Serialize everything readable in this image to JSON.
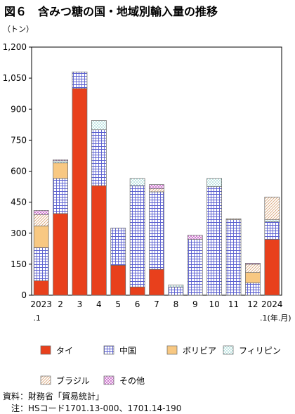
{
  "chart_data": {
    "type": "bar",
    "stacked": true,
    "title": "図６　含みつ糖の国・地域別輸入量の推移",
    "ylabel": "（トン）",
    "xlabel": ".1(年.月)",
    "ylim": [
      0,
      1200
    ],
    "yticks": [
      0,
      150,
      300,
      450,
      600,
      750,
      900,
      1050,
      1200
    ],
    "ytick_labels": [
      "0",
      "150",
      "300",
      "450",
      "600",
      "750",
      "900",
      "1,050",
      "1,200"
    ],
    "grid": false,
    "legend_position": "bottom",
    "categories": [
      "2023",
      "2",
      "3",
      "4",
      "5",
      "6",
      "7",
      "8",
      "9",
      "10",
      "11",
      "12",
      "2024"
    ],
    "category_sublabels": [
      ".1",
      "",
      "",
      "",
      "",
      "",
      "",
      "",
      "",
      "",
      "",
      "",
      ""
    ],
    "series": [
      {
        "name": "タイ",
        "color": "#e8401c",
        "pattern": "solid",
        "values": [
          70,
          395,
          1000,
          530,
          145,
          40,
          125,
          0,
          0,
          0,
          0,
          0,
          270
        ]
      },
      {
        "name": "中国",
        "color": "#5a5fd0",
        "pattern": "grid",
        "values": [
          160,
          170,
          80,
          270,
          180,
          490,
          375,
          40,
          270,
          525,
          365,
          60,
          85
        ]
      },
      {
        "name": "ボリビア",
        "color": "#f8c882",
        "pattern": "fill",
        "values": [
          105,
          75,
          0,
          0,
          0,
          0,
          0,
          0,
          0,
          0,
          0,
          50,
          0
        ]
      },
      {
        "name": "フィリピン",
        "color": "#28a8a0",
        "pattern": "dots",
        "values": [
          0,
          10,
          0,
          45,
          0,
          35,
          0,
          10,
          0,
          40,
          0,
          0,
          10
        ]
      },
      {
        "name": "ブラジル",
        "color": "#d8a070",
        "pattern": "diagonal",
        "values": [
          55,
          0,
          0,
          0,
          0,
          0,
          15,
          0,
          0,
          0,
          5,
          40,
          110
        ]
      },
      {
        "name": "その他",
        "color": "#c050c0",
        "pattern": "cross",
        "values": [
          20,
          5,
          0,
          0,
          0,
          0,
          20,
          0,
          20,
          0,
          0,
          5,
          0
        ]
      }
    ]
  },
  "notes": {
    "source": "資料：財務省「貿易統計」",
    "hs": "　注：HSコード1701.13-000、1701.14-190"
  }
}
